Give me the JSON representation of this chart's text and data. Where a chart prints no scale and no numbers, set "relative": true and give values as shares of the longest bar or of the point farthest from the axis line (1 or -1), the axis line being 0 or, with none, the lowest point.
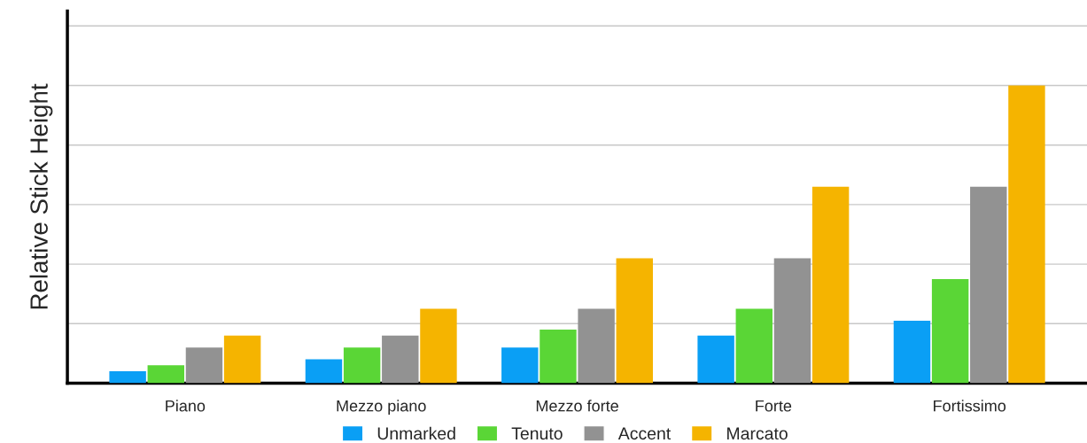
{
  "chart_data": {
    "type": "bar",
    "ylabel": "Relative Stick Height",
    "relative": true,
    "categories": [
      "Piano",
      "Mezzo piano",
      "Mezzo forte",
      "Forte",
      "Fortissimo"
    ],
    "series": [
      {
        "name": "Unmarked",
        "color": "#0a9ff5",
        "values": [
          0.04,
          0.08,
          0.12,
          0.16,
          0.21
        ]
      },
      {
        "name": "Tenuto",
        "color": "#5ad636",
        "values": [
          0.06,
          0.12,
          0.18,
          0.25,
          0.35
        ]
      },
      {
        "name": "Accent",
        "color": "#929292",
        "values": [
          0.12,
          0.16,
          0.25,
          0.42,
          0.66
        ]
      },
      {
        "name": "Marcato",
        "color": "#f5b400",
        "values": [
          0.16,
          0.25,
          0.42,
          0.66,
          1.0
        ]
      }
    ],
    "grid": "y",
    "legend": "bottom"
  }
}
